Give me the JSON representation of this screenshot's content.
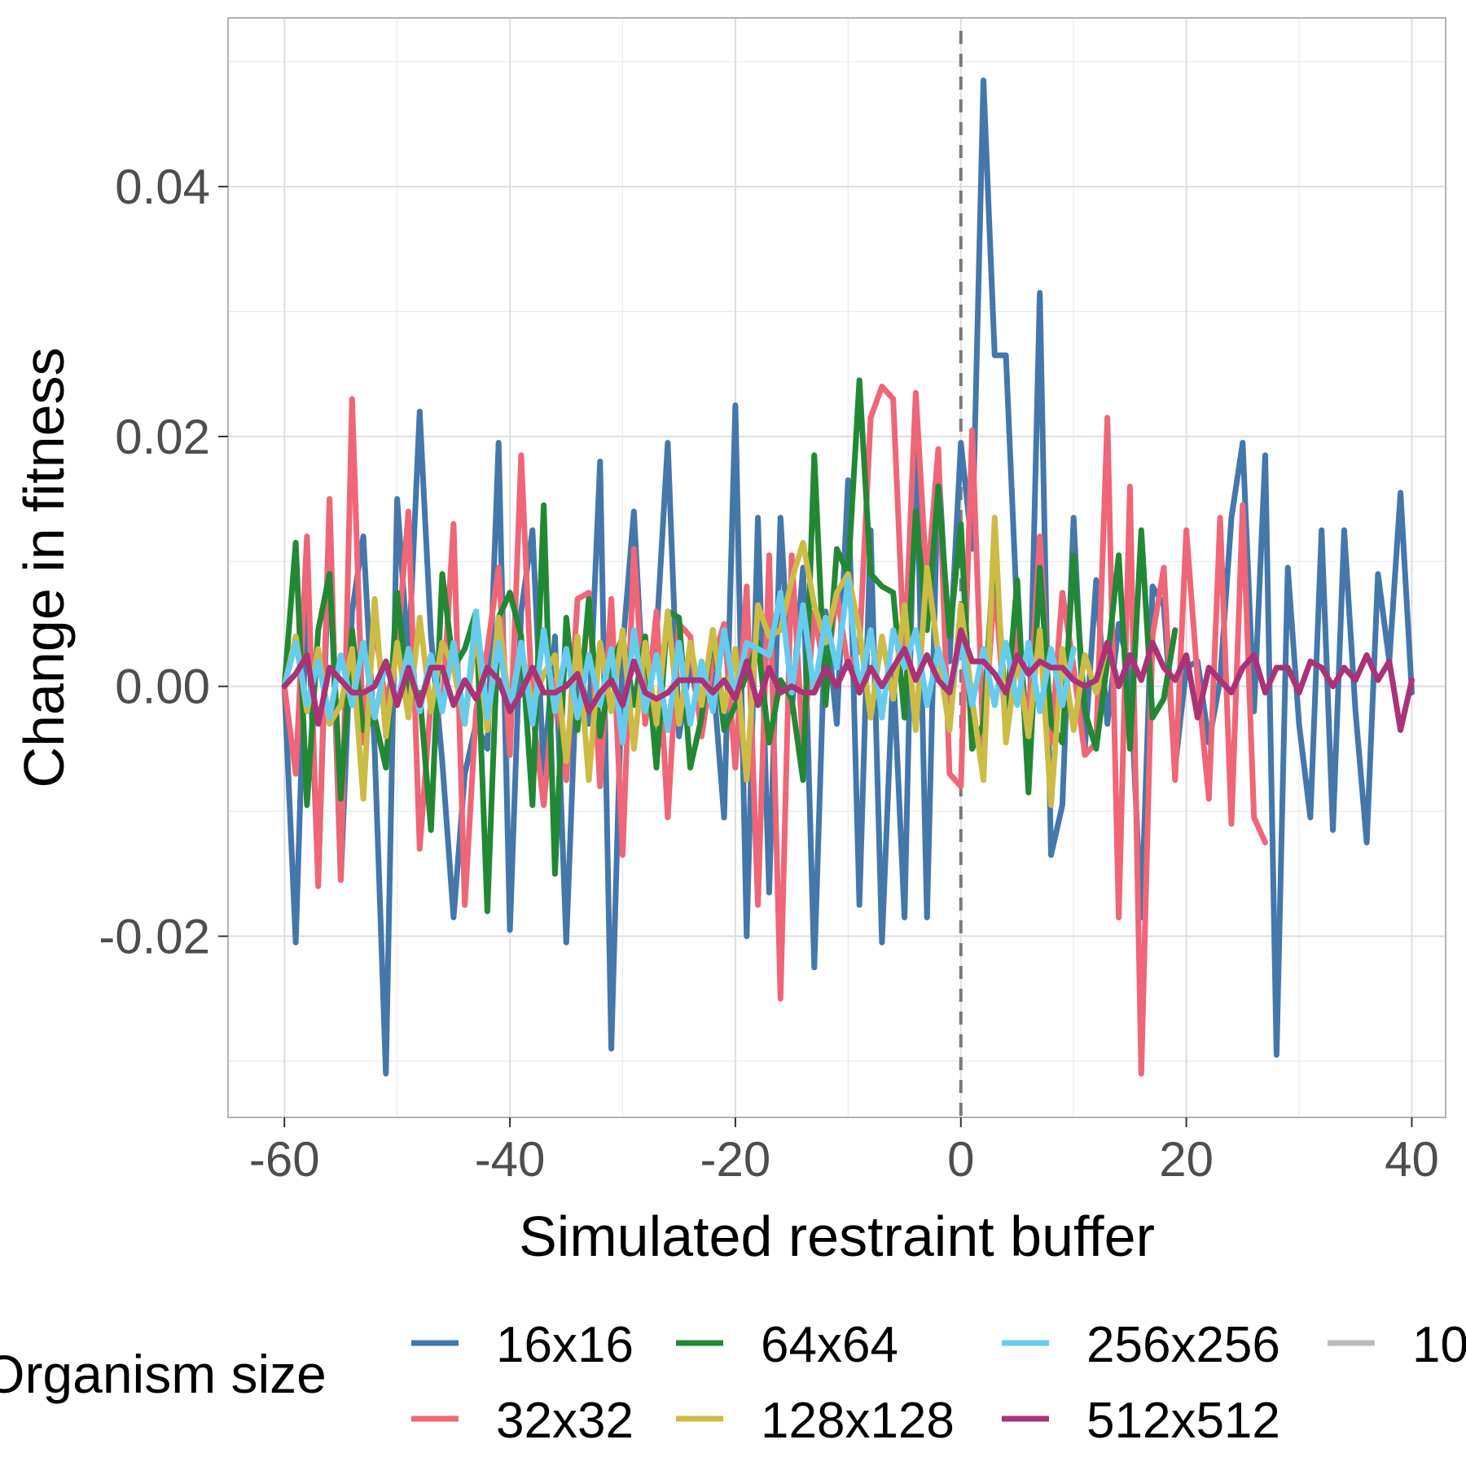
{
  "chart_data": {
    "type": "line",
    "title": "",
    "xlabel": "Simulated restraint buffer",
    "ylabel": "Change in fitness",
    "xlim": [
      -65,
      43
    ],
    "ylim": [
      -0.0345,
      0.0535
    ],
    "x_ticks": [
      -60,
      -40,
      -20,
      0,
      20,
      40
    ],
    "x_tick_labels": [
      "-60",
      "-40",
      "-20",
      "0",
      "20",
      "40"
    ],
    "y_ticks": [
      -0.02,
      0.0,
      0.02,
      0.04
    ],
    "y_tick_labels": [
      "-0.02",
      "0.00",
      "0.02",
      "0.04"
    ],
    "grid": true,
    "reference_line": {
      "x": 0,
      "style": "dashed",
      "color": "#7a7a7a"
    },
    "legend": {
      "title": "Organism size",
      "position": "bottom",
      "entries": [
        {
          "label": "16x16",
          "color": "#4477AA"
        },
        {
          "label": "32x32",
          "color": "#EE6677"
        },
        {
          "label": "64x64",
          "color": "#228833"
        },
        {
          "label": "128x128",
          "color": "#CCBB44"
        },
        {
          "label": "256x256",
          "color": "#66CCEE"
        },
        {
          "label": "512x512",
          "color": "#AA3377"
        },
        {
          "label": "10",
          "color": "#BBBBBB"
        }
      ]
    },
    "x_start": -60,
    "x_step": 1,
    "series": [
      {
        "name": "16x16",
        "color": "#4477AA",
        "values": [
          0.0,
          -0.0205,
          0.008,
          -0.0155,
          0.0125,
          -0.0155,
          0.006,
          0.012,
          -0.005,
          -0.031,
          0.015,
          0.002,
          0.022,
          0.004,
          -0.006,
          -0.0185,
          -0.007,
          -0.003,
          -0.005,
          0.0195,
          -0.0195,
          0.006,
          0.0125,
          -0.007,
          0.004,
          -0.0205,
          0.003,
          -0.003,
          0.018,
          -0.029,
          0.003,
          0.014,
          -0.003,
          0.004,
          0.0195,
          -0.004,
          0.002,
          -0.003,
          0.001,
          -0.0105,
          0.0225,
          -0.02,
          0.0135,
          -0.0165,
          0.0135,
          -0.002,
          0.0095,
          -0.0225,
          0.006,
          -0.003,
          0.0165,
          -0.0175,
          0.0125,
          -0.0205,
          0.0015,
          -0.0185,
          0.0215,
          -0.0185,
          0.018,
          0.002,
          0.0195,
          0.011,
          0.0485,
          0.0265,
          0.0265,
          0.0055,
          -0.0065,
          0.0315,
          -0.0135,
          -0.0095,
          0.0135,
          -0.005,
          0.0085,
          -0.003,
          0.005,
          0.001,
          -0.0185,
          0.008,
          0.0065,
          -0.0065,
          0.0015,
          0.002,
          -0.0045,
          0.0005,
          0.0135,
          0.0195,
          -0.002,
          0.0185,
          -0.0295,
          0.0095,
          -0.003,
          -0.0105,
          0.0125,
          -0.0115,
          0.0125,
          -0.002,
          -0.0125,
          0.009,
          0.002,
          0.0155,
          -0.0005
        ]
      },
      {
        "name": "32x32",
        "color": "#EE6677",
        "values": [
          0.0,
          -0.007,
          0.012,
          -0.016,
          0.015,
          -0.0155,
          0.023,
          -0.0045,
          0.005,
          -0.0015,
          0.003,
          0.014,
          -0.013,
          -0.001,
          -0.002,
          0.013,
          -0.0175,
          -0.002,
          0.003,
          0.0095,
          -0.0055,
          0.0185,
          -0.002,
          -0.0095,
          0.0005,
          -0.0075,
          0.007,
          0.0075,
          -0.008,
          0.007,
          -0.0135,
          0.011,
          -0.003,
          0.006,
          -0.0105,
          0.005,
          0.004,
          -0.004,
          0.002,
          0.005,
          -0.0065,
          0.008,
          -0.0175,
          0.0105,
          -0.025,
          0.0105,
          -0.005,
          0.006,
          0.0005,
          0.0075,
          0.0015,
          0.003,
          0.0215,
          0.024,
          0.023,
          0.002,
          0.0235,
          0.008,
          0.019,
          -0.007,
          -0.008,
          0.0205,
          -0.005,
          0.0085,
          -0.0035,
          0.0045,
          -0.0035,
          0.012,
          -0.0045,
          0.0075,
          0.0015,
          -0.0055,
          -0.0045,
          0.0215,
          -0.0185,
          0.016,
          -0.031,
          0.004,
          0.0095,
          -0.0075,
          0.0125,
          0.0005,
          -0.009,
          0.0135,
          -0.011,
          0.0145,
          -0.0105,
          -0.0125
        ]
      },
      {
        "name": "64x64",
        "color": "#228833",
        "values": [
          0.0,
          0.0115,
          -0.0095,
          0.0045,
          0.009,
          -0.009,
          0.0045,
          -0.0035,
          -0.0025,
          -0.0065,
          0.0075,
          -0.001,
          -0.0005,
          -0.0115,
          0.009,
          0.0015,
          0.003,
          0.006,
          -0.018,
          0.0055,
          0.0075,
          0.004,
          -0.0095,
          0.0145,
          -0.015,
          0.0055,
          -0.0035,
          0.007,
          -0.004,
          0.0015,
          0.004,
          -0.0015,
          0.004,
          -0.0065,
          0.006,
          0.0055,
          -0.0065,
          -0.0025,
          0.0045,
          -0.0035,
          -0.0015,
          0.001,
          0.0035,
          -0.0045,
          0.0005,
          -0.001,
          -0.0075,
          0.0185,
          -0.0015,
          0.011,
          0.009,
          0.0245,
          0.009,
          0.008,
          0.0075,
          -0.0025,
          0.014,
          0.0045,
          0.016,
          0.004,
          0.013,
          -0.005,
          -0.003,
          0.0115,
          -0.0025,
          0.0085,
          -0.0085,
          0.0095,
          -0.003,
          -0.0045,
          0.0105,
          -0.002,
          -0.005,
          0.002,
          0.0105,
          -0.005,
          0.0125,
          -0.0025,
          -0.001,
          0.0045
        ]
      },
      {
        "name": "128x128",
        "color": "#CCBB44",
        "values": [
          0.0,
          0.004,
          -0.002,
          0.003,
          -0.003,
          -0.0015,
          0.003,
          -0.009,
          0.007,
          -0.004,
          0.0035,
          -0.0025,
          0.0055,
          -0.002,
          0.0035,
          0.0015,
          -0.003,
          0.0045,
          -0.0035,
          0.0055,
          -0.002,
          0.003,
          -0.0015,
          0.001,
          0.0025,
          -0.006,
          0.004,
          -0.0075,
          0.0035,
          -0.002,
          0.0045,
          -0.005,
          0.0035,
          -0.003,
          0.006,
          -0.003,
          0.0035,
          -0.0015,
          0.0045,
          -0.002,
          0.003,
          -0.0075,
          0.0065,
          0.004,
          0.0045,
          0.0085,
          0.0115,
          0.0065,
          0.0035,
          0.0075,
          0.009,
          0.0045,
          -0.0025,
          0.004,
          -0.001,
          0.0065,
          -0.0035,
          0.0095,
          0.0025,
          -0.0035,
          0.0065,
          -0.001,
          -0.0075,
          0.0135,
          -0.0045,
          0.0025,
          -0.004,
          0.0045,
          -0.0095,
          0.003,
          -0.0035,
          0.0025,
          -0.0005,
          0.0035
        ]
      },
      {
        "name": "256x256",
        "color": "#66CCEE",
        "values": [
          0.0,
          0.0035,
          -0.0015,
          0.002,
          -0.0025,
          0.0025,
          -0.0015,
          0.0035,
          -0.0025,
          0.002,
          -0.0015,
          0.003,
          -0.002,
          0.0025,
          -0.002,
          0.0035,
          -0.003,
          0.006,
          -0.0025,
          0.0035,
          -0.002,
          0.0035,
          -0.003,
          0.0045,
          -0.002,
          0.003,
          -0.0025,
          0.0025,
          -0.0015,
          0.003,
          -0.0045,
          0.0045,
          -0.002,
          0.0025,
          -0.0035,
          0.0035,
          -0.003,
          0.002,
          -0.002,
          0.0045,
          -0.001,
          0.0035,
          0.003,
          0.0025,
          0.0075,
          -0.0005,
          0.0065,
          -0.0005,
          0.0055,
          0.0015,
          0.0085,
          -0.0005,
          0.0045,
          -0.0025,
          0.0045,
          0.0015,
          0.0045,
          -0.0015,
          0.003,
          -0.0005,
          0.0035,
          -0.0015,
          0.003,
          -0.0015,
          0.0035,
          -0.0015,
          0.0035,
          -0.002,
          0.003,
          -0.0015,
          0.003
        ]
      },
      {
        "name": "512x512",
        "color": "#AA3377",
        "values": [
          0.0,
          0.001,
          0.0025,
          -0.003,
          0.0015,
          0.0005,
          -0.0005,
          -0.0005,
          0.0,
          0.002,
          -0.0015,
          0.0015,
          -0.0015,
          0.0015,
          0.0015,
          -0.0015,
          0.0005,
          -0.001,
          0.0015,
          0.0005,
          -0.002,
          -0.0005,
          0.0015,
          -0.0005,
          -0.0005,
          0.0,
          0.001,
          -0.002,
          -0.0005,
          0.0005,
          -0.0015,
          0.002,
          -0.0005,
          -0.001,
          -0.0005,
          0.0005,
          0.0005,
          0.0005,
          -0.0005,
          0.0005,
          -0.001,
          0.002,
          -0.0015,
          0.0015,
          -0.0005,
          0.0,
          -0.0005,
          -0.0005,
          0.0015,
          0.0,
          0.002,
          -0.0005,
          0.0015,
          0.0,
          0.0015,
          0.003,
          0.0005,
          0.0025,
          0.0005,
          -0.0005,
          0.0045,
          0.002,
          0.002,
          0.001,
          -0.0005,
          0.0025,
          0.001,
          0.002,
          0.0015,
          0.0015,
          0.0005,
          0.0,
          0.0005,
          0.0035,
          0.0,
          0.0025,
          0.0005,
          0.0035,
          0.0015,
          0.0005,
          0.0025,
          -0.0025,
          0.0015,
          0.0005,
          -0.0005,
          0.0015,
          0.0025,
          -0.0005,
          0.0015,
          0.0015,
          -0.0005,
          0.002,
          0.0015,
          0.0,
          0.0015,
          0.0005,
          0.0025,
          0.0005,
          0.002,
          -0.0035,
          0.0005
        ]
      }
    ]
  }
}
